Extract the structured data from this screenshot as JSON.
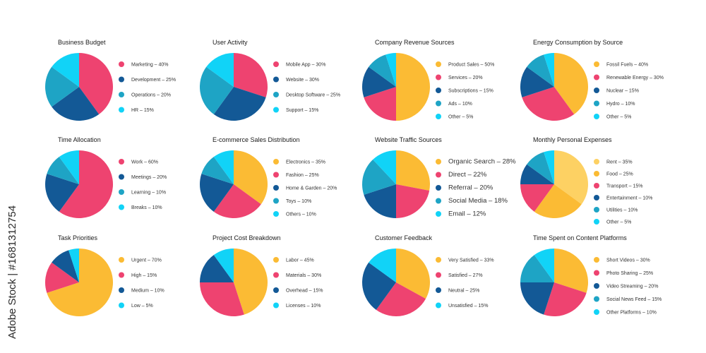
{
  "colors": {
    "pink": "#ee4370",
    "navy": "#135996",
    "teal": "#1ea4c5",
    "cyan": "#11d3f7",
    "yellow": "#fbbb34",
    "lightyellow": "#fdd163"
  },
  "watermark": "Adobe Stock | #1681312754",
  "chart_data": [
    {
      "type": "pie",
      "title": "Business Budget",
      "labels": [
        "Marketing – 40%",
        "Development – 25%",
        "Operations – 20%",
        "HR – 15%"
      ],
      "values": [
        40,
        25,
        20,
        15
      ],
      "colors": [
        "#ee4370",
        "#135996",
        "#1ea4c5",
        "#11d3f7"
      ],
      "legend": "right"
    },
    {
      "type": "pie",
      "title": "User Activity",
      "labels": [
        "Mobile App – 30%",
        "Website – 30%",
        "Desktop Software – 25%",
        "Support – 15%"
      ],
      "values": [
        30,
        30,
        25,
        15
      ],
      "colors": [
        "#ee4370",
        "#135996",
        "#1ea4c5",
        "#11d3f7"
      ],
      "legend": "right"
    },
    {
      "type": "pie",
      "title": "Company Revenue Sources",
      "labels": [
        "Product Sales – 50%",
        "Services – 20%",
        "Subscriptions – 15%",
        "Ads – 10%",
        "Other – 5%"
      ],
      "values": [
        50,
        20,
        15,
        10,
        5
      ],
      "colors": [
        "#fbbb34",
        "#ee4370",
        "#135996",
        "#1ea4c5",
        "#11d3f7"
      ],
      "legend": "right"
    },
    {
      "type": "pie",
      "title": "Energy Consumption by Source",
      "labels": [
        "Fossil Fuels – 40%",
        "Renewable Energy – 30%",
        "Nuclear – 15%",
        "Hydro – 10%",
        "Other – 5%"
      ],
      "values": [
        40,
        30,
        15,
        10,
        5
      ],
      "colors": [
        "#fbbb34",
        "#ee4370",
        "#135996",
        "#1ea4c5",
        "#11d3f7"
      ],
      "legend": "right"
    },
    {
      "type": "pie",
      "title": "Time Allocation",
      "labels": [
        "Work – 60%",
        "Meetings – 20%",
        "Learning – 10%",
        "Breaks – 10%"
      ],
      "values": [
        60,
        20,
        10,
        10
      ],
      "colors": [
        "#ee4370",
        "#135996",
        "#1ea4c5",
        "#11d3f7"
      ],
      "legend": "right"
    },
    {
      "type": "pie",
      "title": "E-commerce Sales Distribution",
      "labels": [
        "Electronics – 35%",
        "Fashion – 25%",
        "Home & Garden – 20%",
        "Toys – 10%",
        "Others – 10%"
      ],
      "values": [
        35,
        25,
        20,
        10,
        10
      ],
      "colors": [
        "#fbbb34",
        "#ee4370",
        "#135996",
        "#1ea4c5",
        "#11d3f7"
      ],
      "legend": "right"
    },
    {
      "type": "pie",
      "title": "Website Traffic Sources",
      "labels": [
        "Organic Search – 28%",
        "Direct – 22%",
        "Referral – 20%",
        "Social Media – 18%",
        "Email – 12%"
      ],
      "values": [
        28,
        22,
        20,
        18,
        12
      ],
      "colors": [
        "#fbbb34",
        "#ee4370",
        "#135996",
        "#1ea4c5",
        "#11d3f7"
      ],
      "legend": "right",
      "legend_large": true
    },
    {
      "type": "pie",
      "title": "Monthly Personal Expenses",
      "labels": [
        "Rent – 35%",
        "Food – 25%",
        "Transport – 15%",
        "Entertainment – 10%",
        "Utilities – 10%",
        "Other – 5%"
      ],
      "values": [
        35,
        25,
        15,
        10,
        10,
        5
      ],
      "colors": [
        "#fdd163",
        "#fbbb34",
        "#ee4370",
        "#135996",
        "#1ea4c5",
        "#11d3f7"
      ],
      "legend": "right"
    },
    {
      "type": "pie",
      "title": "Task Priorities",
      "labels": [
        "Urgent – 70%",
        "High – 15%",
        "Medium – 10%",
        "Low – 5%"
      ],
      "values": [
        70,
        15,
        10,
        5
      ],
      "colors": [
        "#fbbb34",
        "#ee4370",
        "#135996",
        "#11d3f7"
      ],
      "legend": "right"
    },
    {
      "type": "pie",
      "title": "Project Cost Breakdown",
      "labels": [
        "Labor – 45%",
        "Materials – 30%",
        "Overhead – 15%",
        "Licenses – 10%"
      ],
      "values": [
        45,
        30,
        15,
        10
      ],
      "colors": [
        "#fbbb34",
        "#ee4370",
        "#135996",
        "#11d3f7"
      ],
      "legend": "right"
    },
    {
      "type": "pie",
      "title": "Customer Feedback",
      "labels": [
        "Very Satisfied – 33%",
        "Satisfied – 27%",
        "Neutral – 25%",
        "Unsatisfied – 15%"
      ],
      "values": [
        33,
        27,
        25,
        15
      ],
      "colors": [
        "#fbbb34",
        "#ee4370",
        "#135996",
        "#11d3f7"
      ],
      "legend": "right"
    },
    {
      "type": "pie",
      "title": "Time Spent on Content Platforms",
      "labels": [
        "Short Videos – 30%",
        "Photo Sharing – 25%",
        "Video Streaming – 20%",
        "Social News Feed – 15%",
        "Other Platforms – 10%"
      ],
      "values": [
        30,
        25,
        20,
        15,
        10
      ],
      "colors": [
        "#fbbb34",
        "#ee4370",
        "#135996",
        "#1ea4c5",
        "#11d3f7"
      ],
      "legend": "right"
    }
  ]
}
